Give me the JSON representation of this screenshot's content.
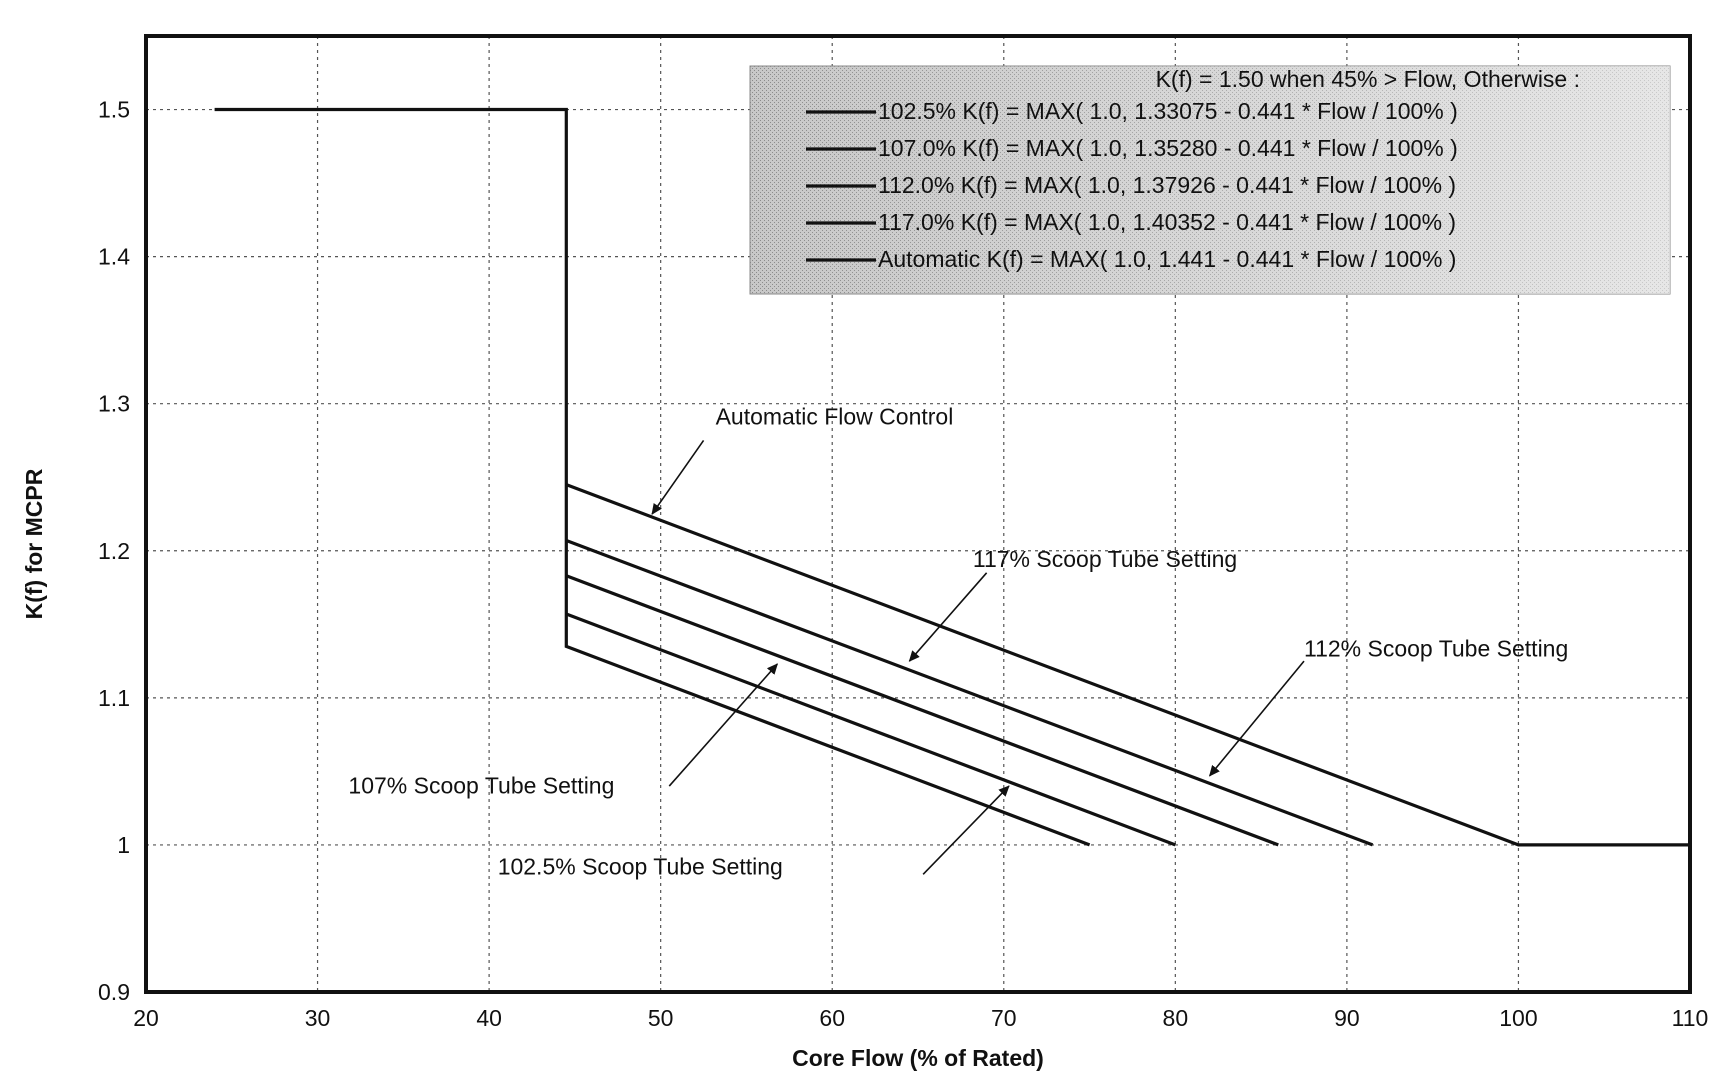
{
  "chart_data": {
    "type": "line",
    "title": "",
    "xlabel": "Core Flow (% of Rated)",
    "ylabel": "K(f)  for MCPR",
    "xlim": [
      20,
      110
    ],
    "ylim": [
      0.9,
      1.55
    ],
    "xticks": [
      {
        "v": 20,
        "label": "20"
      },
      {
        "v": 30,
        "label": "30"
      },
      {
        "v": 40,
        "label": "40"
      },
      {
        "v": 50,
        "label": "50"
      },
      {
        "v": 60,
        "label": "60"
      },
      {
        "v": 70,
        "label": "70"
      },
      {
        "v": 80,
        "label": "80"
      },
      {
        "v": 90,
        "label": "90"
      },
      {
        "v": 100,
        "label": "100"
      },
      {
        "v": 110,
        "label": "110"
      }
    ],
    "yticks": [
      {
        "v": 0.9,
        "label": "0.9"
      },
      {
        "v": 1.0,
        "label": "1"
      },
      {
        "v": 1.1,
        "label": "1.1"
      },
      {
        "v": 1.2,
        "label": "1.2"
      },
      {
        "v": 1.3,
        "label": "1.3"
      },
      {
        "v": 1.4,
        "label": "1.4"
      },
      {
        "v": 1.5,
        "label": "1.5"
      }
    ],
    "grid": true,
    "legend_position": "top-right",
    "legend": {
      "header": "K(f) = 1.50  when  45% > Flow,    Otherwise :",
      "entries": [
        "102.5%  K(f) = MAX( 1.0, 1.33075 - 0.441 * Flow / 100% )",
        "107.0%  K(f) = MAX( 1.0, 1.35280 - 0.441 * Flow / 100% )",
        "112.0%  K(f) = MAX( 1.0, 1.37926 - 0.441 * Flow / 100% )",
        "117.0%  K(f) = MAX( 1.0, 1.40352 - 0.441 * Flow / 100% )",
        "Automatic  K(f) = MAX( 1.0, 1.441 - 0.441 * Flow / 100% )"
      ]
    },
    "series": [
      {
        "key": "102.5",
        "points": [
          [
            24,
            1.5
          ],
          [
            44.5,
            1.5
          ],
          [
            44.5,
            1.135
          ],
          [
            75,
            1.0
          ]
        ]
      },
      {
        "key": "107.0",
        "points": [
          [
            44.5,
            1.157
          ],
          [
            80,
            1.0
          ]
        ]
      },
      {
        "key": "112.0",
        "points": [
          [
            44.5,
            1.183
          ],
          [
            86,
            1.0
          ]
        ]
      },
      {
        "key": "117.0",
        "points": [
          [
            44.5,
            1.207
          ],
          [
            91.5,
            1.0
          ]
        ]
      },
      {
        "key": "Automatic",
        "points": [
          [
            44.5,
            1.245
          ],
          [
            100,
            1.0
          ],
          [
            110,
            1.0
          ]
        ]
      }
    ],
    "annotations": [
      {
        "text": "Automatic Flow Control",
        "tx": 53.2,
        "ty": 1.286,
        "arrow_from": [
          52.5,
          1.275
        ],
        "arrow_to": [
          49.5,
          1.225
        ]
      },
      {
        "text": "117% Scoop Tube Setting",
        "tx": 68.2,
        "ty": 1.189,
        "arrow_from": [
          69,
          1.185
        ],
        "arrow_to": [
          64.5,
          1.125
        ]
      },
      {
        "text": "112% Scoop Tube Setting",
        "tx": 87.5,
        "ty": 1.128,
        "arrow_from": [
          87.5,
          1.125
        ],
        "arrow_to": [
          82,
          1.047
        ]
      },
      {
        "text": "107% Scoop Tube Setting",
        "tx": 31.8,
        "ty": 1.035,
        "arrow_from": [
          50.5,
          1.04
        ],
        "arrow_to": [
          56.8,
          1.123
        ]
      },
      {
        "text": "102.5% Scoop Tube Setting",
        "tx": 40.5,
        "ty": 0.98,
        "arrow_from": [
          65.3,
          0.98
        ],
        "arrow_to": [
          70.3,
          1.04
        ]
      }
    ]
  }
}
